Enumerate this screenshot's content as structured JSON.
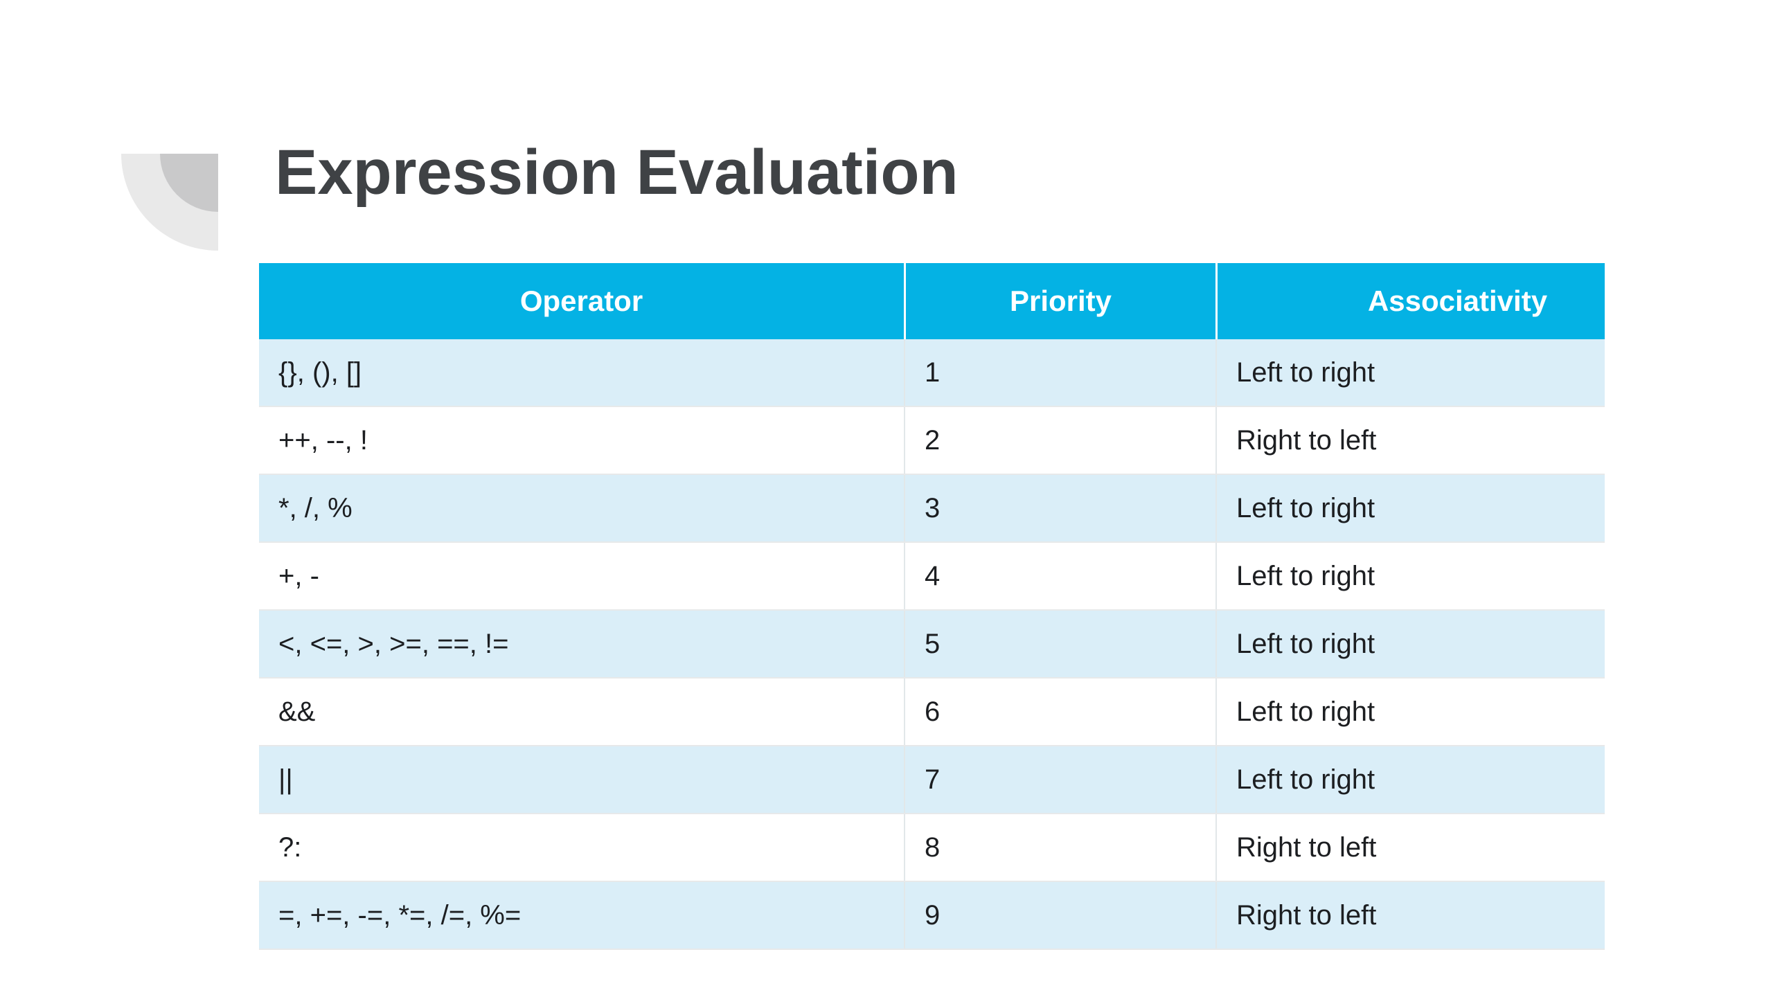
{
  "page": {
    "background_color": "#ffffff"
  },
  "decoration": {
    "outer_color": "#e9e9e9",
    "inner_color": "#c9c9ca"
  },
  "title": {
    "text": "Expression Evaluation",
    "color": "#3f4245"
  },
  "table": {
    "header": {
      "background_color": "#04b2e4",
      "text_color": "#ffffff",
      "columns": [
        "Operator",
        "Priority",
        "Associativity"
      ]
    },
    "alt_row_color": "#daeef8",
    "rows": [
      {
        "operator": "{}, (), []",
        "priority": "1",
        "associativity": "Left to right"
      },
      {
        "operator": "++, --, !",
        "priority": "2",
        "associativity": "Right to left"
      },
      {
        "operator": "*, /, %",
        "priority": "3",
        "associativity": "Left to right"
      },
      {
        "operator": "+, -",
        "priority": "4",
        "associativity": "Left to right"
      },
      {
        "operator": "<, <=, >, >=, ==, !=",
        "priority": "5",
        "associativity": "Left to right"
      },
      {
        "operator": "&&",
        "priority": "6",
        "associativity": "Left to right"
      },
      {
        "operator": "||",
        "priority": "7",
        "associativity": "Left to right"
      },
      {
        "operator": "?:",
        "priority": "8",
        "associativity": "Right to left"
      },
      {
        "operator": "=, +=, -=, *=, /=, %=",
        "priority": "9",
        "associativity": "Right to left"
      }
    ]
  }
}
